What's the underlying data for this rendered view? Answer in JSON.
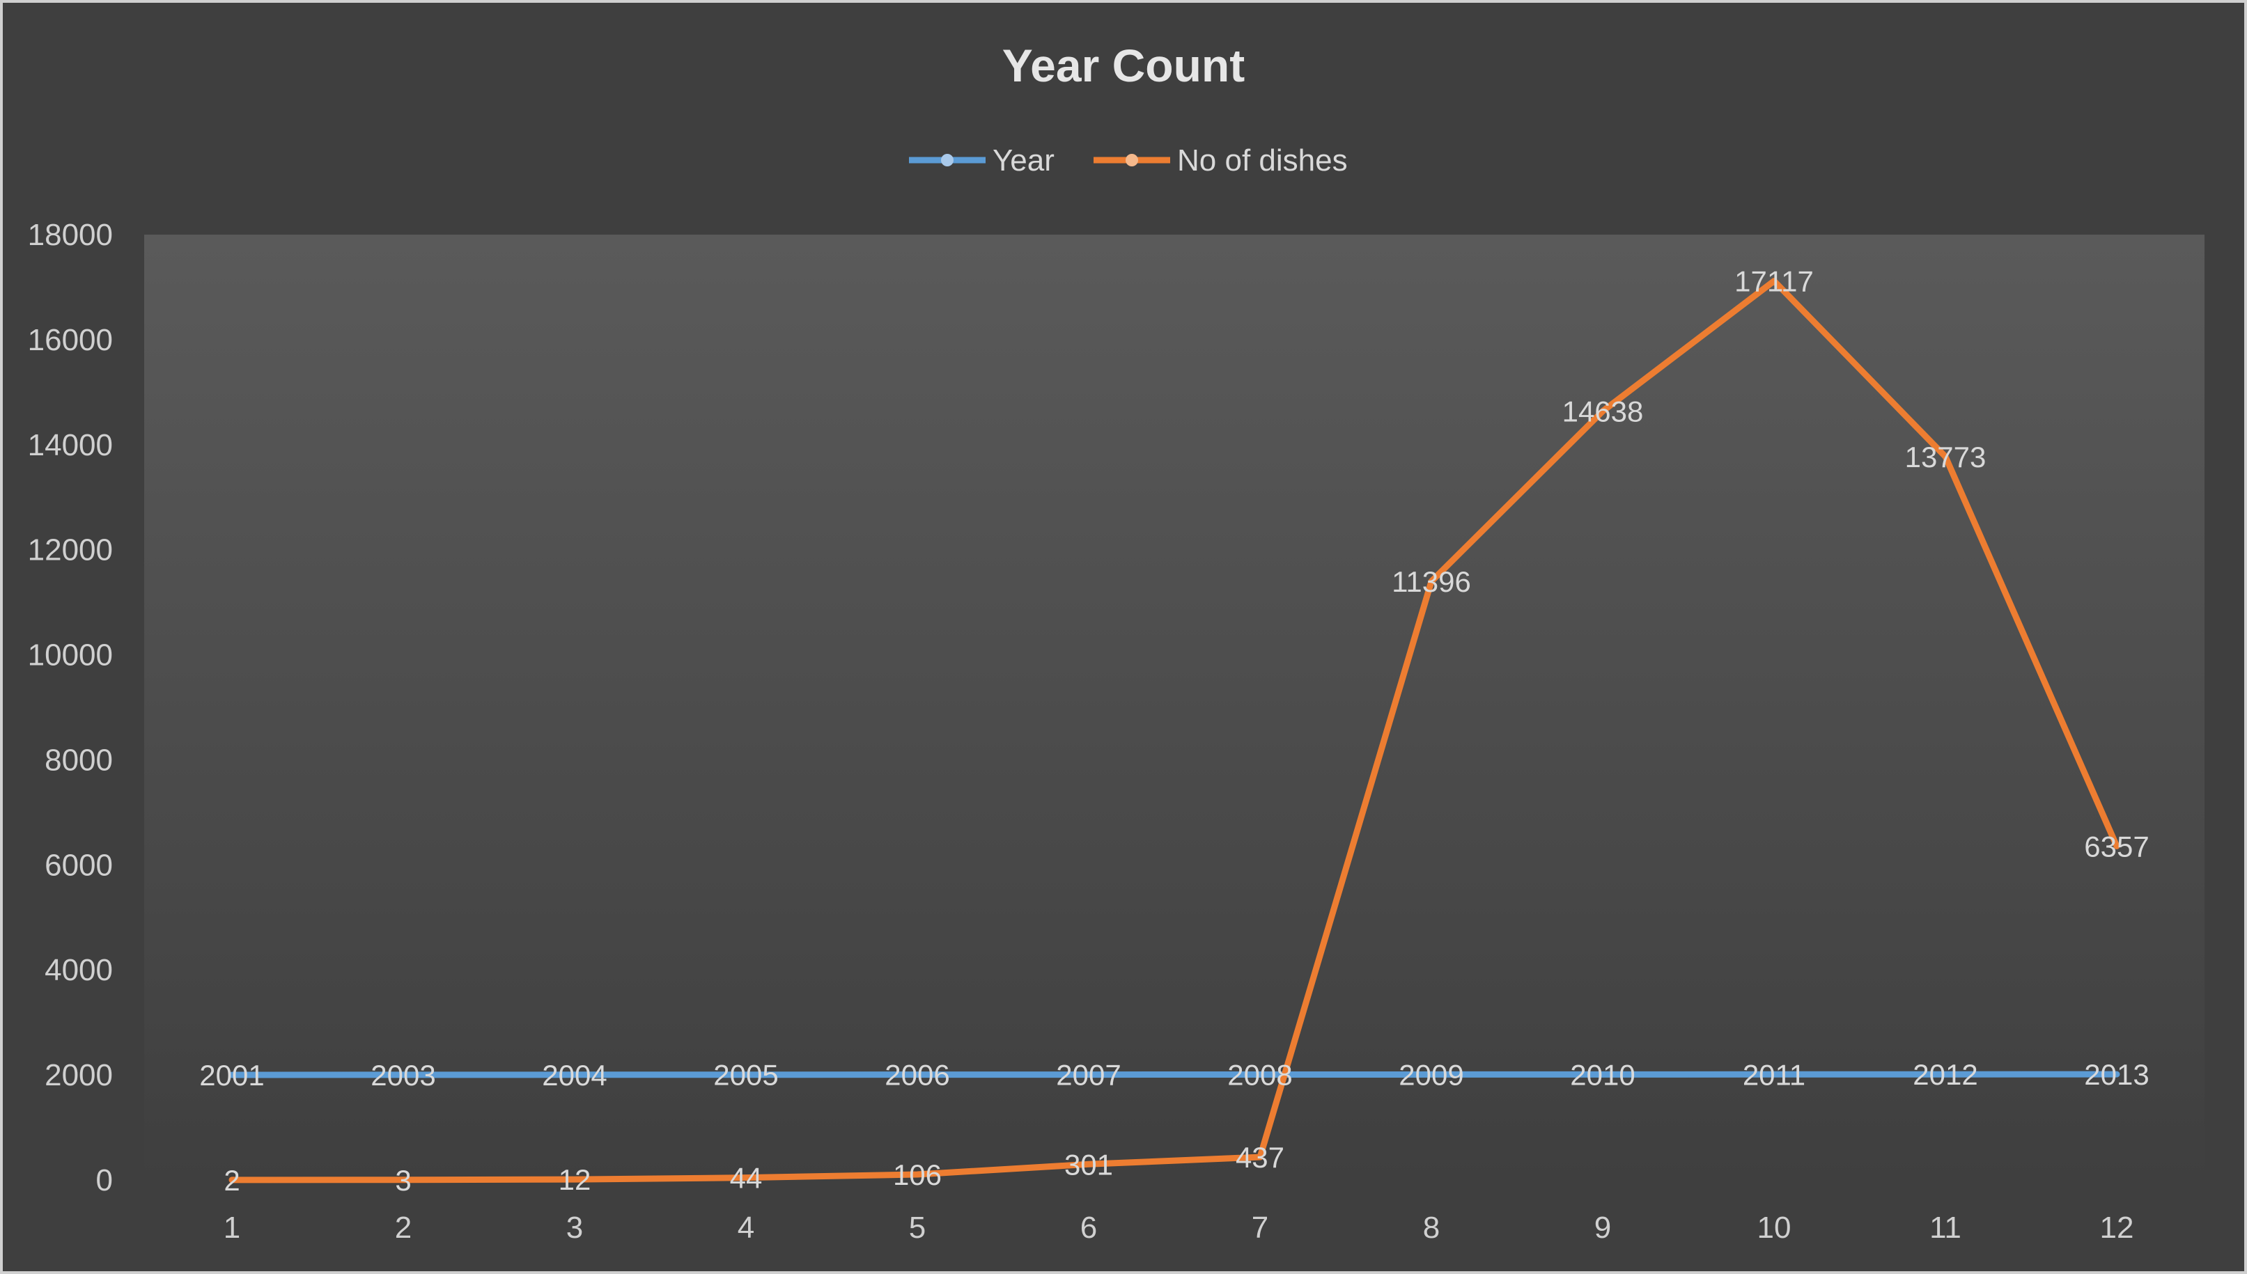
{
  "chart_data": {
    "type": "line",
    "title": "Year Count",
    "x": [
      1,
      2,
      3,
      4,
      5,
      6,
      7,
      8,
      9,
      10,
      11,
      12
    ],
    "series": [
      {
        "name": "Year",
        "values": [
          2001,
          2003,
          2004,
          2005,
          2006,
          2007,
          2008,
          2009,
          2010,
          2011,
          2012,
          2013
        ],
        "color": "#5b9bd5"
      },
      {
        "name": "No of dishes",
        "values": [
          2,
          3,
          12,
          44,
          106,
          301,
          437,
          11396,
          14638,
          17117,
          13773,
          6357
        ],
        "color": "#ed7d31"
      }
    ],
    "ylim": [
      0,
      18000
    ],
    "yticks": [
      0,
      2000,
      4000,
      6000,
      8000,
      10000,
      12000,
      14000,
      16000,
      18000
    ],
    "xlabel": "",
    "ylabel": "",
    "grid": false,
    "legend": "top-center",
    "data_labels": true
  }
}
